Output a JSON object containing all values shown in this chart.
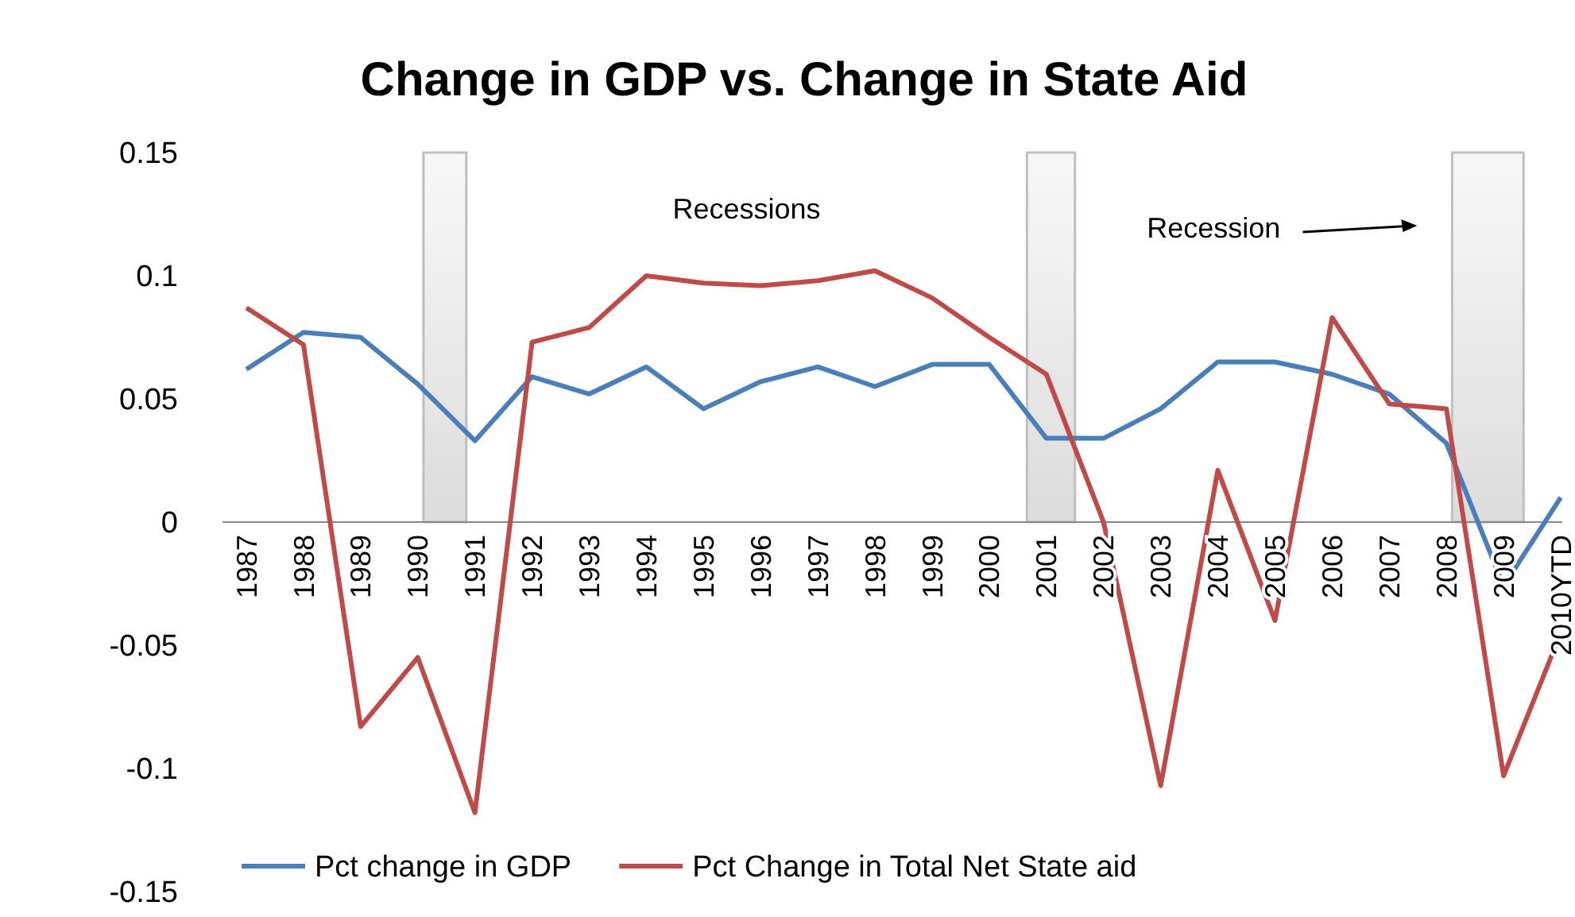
{
  "chart_data": {
    "type": "line",
    "title": "Change in GDP vs. Change in State Aid",
    "categories": [
      "1987",
      "1988",
      "1989",
      "1990",
      "1991",
      "1992",
      "1993",
      "1994",
      "1995",
      "1996",
      "1997",
      "1998",
      "1999",
      "2000",
      "2001",
      "2002",
      "2003",
      "2004",
      "2005",
      "2006",
      "2007",
      "2008",
      "2009",
      "2010YTD"
    ],
    "series": [
      {
        "name": "Pct change in GDP",
        "color": "#4a7ebb",
        "values": [
          0.062,
          0.077,
          0.075,
          0.056,
          0.033,
          0.059,
          0.052,
          0.063,
          0.046,
          0.057,
          0.063,
          0.055,
          0.064,
          0.064,
          0.034,
          0.034,
          0.046,
          0.065,
          0.065,
          0.06,
          0.052,
          0.032,
          -0.026,
          0.01
        ]
      },
      {
        "name": "Pct Change in Total Net State aid",
        "color": "#be4b48",
        "values": [
          0.087,
          0.072,
          -0.083,
          -0.055,
          -0.118,
          0.073,
          0.079,
          0.1,
          0.097,
          0.096,
          0.098,
          0.102,
          0.091,
          0.075,
          0.06,
          0.0,
          -0.107,
          0.021,
          -0.04,
          0.083,
          0.048,
          0.046,
          -0.103,
          -0.045
        ]
      }
    ],
    "ylim": [
      -0.15,
      0.15
    ],
    "yticks": [
      -0.15,
      -0.1,
      -0.05,
      0,
      0.05,
      0.1,
      0.15
    ],
    "grid": false,
    "legend": "bottom",
    "marker": "none",
    "line_style": "solid",
    "bands": [
      {
        "axis": "x",
        "from": "1990",
        "to": "1991",
        "color": "#bfbfbf"
      },
      {
        "axis": "x",
        "from": "2001",
        "to": "2001",
        "color": "#bfbfbf"
      },
      {
        "axis": "x",
        "from": "2008",
        "to": "2009",
        "color": "#bfbfbf"
      }
    ],
    "annotations": [
      "Recessions",
      "Recession"
    ]
  }
}
